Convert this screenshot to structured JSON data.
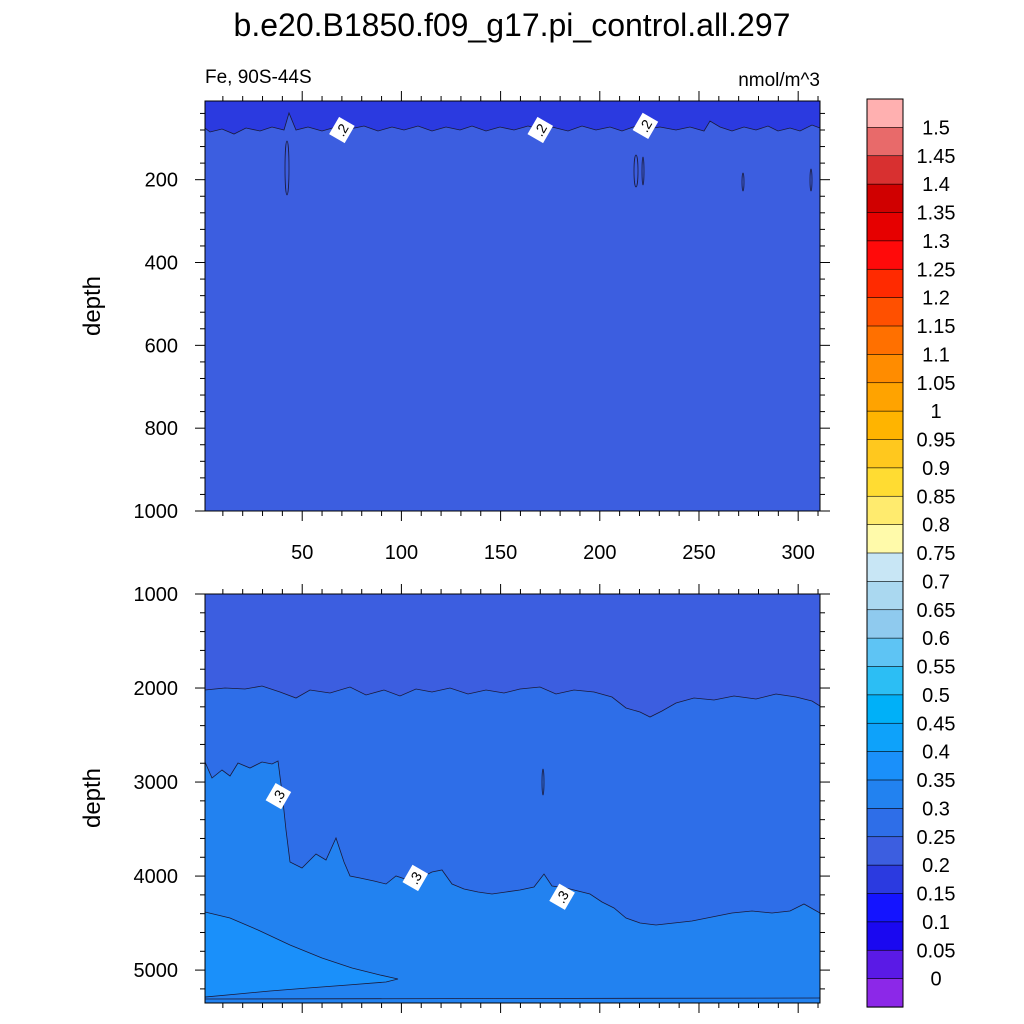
{
  "chart_data": [
    {
      "type": "contour",
      "title": "b.e20.B1850.f09_g17.pi_control.all.297",
      "left_string": "Fe, 90S-44S",
      "right_string": "nmol/m^3",
      "ylabel": "depth",
      "xlim": [
        1,
        311
      ],
      "ylim": [
        1000,
        10
      ],
      "y_reversed": true,
      "xticks": [
        50,
        100,
        150,
        200,
        250,
        300
      ],
      "xtick_labels": [
        "50",
        "100",
        "150",
        "200",
        "250",
        "300"
      ],
      "yticks": [
        200,
        400,
        600,
        800,
        1000
      ],
      "ytick_labels": [
        "200",
        "400",
        "600",
        "800",
        "1000"
      ],
      "contour_labels": [
        {
          "text": ".2",
          "x": 70,
          "y": 80
        },
        {
          "text": ".2",
          "x": 170,
          "y": 80
        },
        {
          "text": ".2",
          "x": 223,
          "y": 70
        }
      ],
      "regions": [
        {
          "level_range": [
            0.15,
            0.2
          ],
          "color": "#2b3ae0",
          "description": "surface layer ~10-80 m"
        },
        {
          "level_range": [
            0.2,
            0.25
          ],
          "color": "#3c5ee0",
          "description": "below ~80 m to 1000 m"
        }
      ]
    },
    {
      "type": "contour",
      "ylabel": "depth",
      "xlim": [
        1,
        311
      ],
      "ylim": [
        5350,
        1000
      ],
      "y_reversed": true,
      "yticks": [
        1000,
        2000,
        3000,
        4000,
        5000
      ],
      "ytick_labels": [
        "1000",
        "2000",
        "3000",
        "4000",
        "5000"
      ],
      "contour_labels": [
        {
          "text": ".3",
          "x": 38,
          "y": 3150
        },
        {
          "text": ".3",
          "x": 107,
          "y": 4020
        },
        {
          "text": ".3",
          "x": 181,
          "y": 4220
        }
      ],
      "regions": [
        {
          "level_range": [
            0.2,
            0.25
          ],
          "color": "#3c5ee0",
          "description": "1000 m to ~2050 m"
        },
        {
          "level_range": [
            0.25,
            0.3
          ],
          "color": "#2e6ee8",
          "description": "~2050 m to ~2800-4500 m"
        },
        {
          "level_range": [
            0.3,
            0.35
          ],
          "color": "#2282f0",
          "description": "deep layer"
        },
        {
          "level_range": [
            0.35,
            0.4
          ],
          "color": "#1a90fa",
          "description": "bottom-left wedge"
        }
      ]
    }
  ],
  "colorbar": {
    "labels": [
      "1.5",
      "1.45",
      "1.4",
      "1.35",
      "1.3",
      "1.25",
      "1.2",
      "1.15",
      "1.1",
      "1.05",
      "1",
      "0.95",
      "0.9",
      "0.85",
      "0.8",
      "0.75",
      "0.7",
      "0.65",
      "0.6",
      "0.55",
      "0.5",
      "0.45",
      "0.4",
      "0.35",
      "0.3",
      "0.25",
      "0.2",
      "0.15",
      "0.1",
      "0.05",
      "0"
    ],
    "colors": [
      "#ffb0b0",
      "#e86a6a",
      "#d83030",
      "#d00000",
      "#e60000",
      "#ff0a0a",
      "#ff2a00",
      "#ff5000",
      "#ff7000",
      "#ff8c00",
      "#ffa300",
      "#ffb400",
      "#ffc81e",
      "#ffdc32",
      "#ffeb6e",
      "#fffaaa",
      "#c8e6f5",
      "#aad8f0",
      "#8fcaee",
      "#5ec4f4",
      "#2cbef4",
      "#00b0f8",
      "#0ea2fa",
      "#1a90fa",
      "#2282f0",
      "#2e6ee8",
      "#3c5ee0",
      "#2b3ae0",
      "#1414ff",
      "#1a08f0",
      "#5a1ae6",
      "#8c28e8"
    ]
  }
}
